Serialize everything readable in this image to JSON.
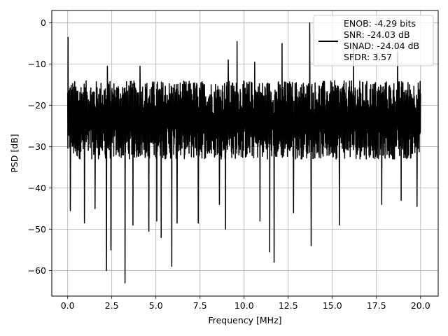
{
  "chart_data": {
    "type": "line",
    "title": "",
    "xlabel": "Frequency [MHz]",
    "ylabel": "PSD [dB]",
    "xlim": [
      -0.9,
      21.0
    ],
    "ylim": [
      -66.2,
      3.0
    ],
    "x_ticks": [
      0.0,
      2.5,
      5.0,
      7.5,
      10.0,
      12.5,
      15.0,
      17.5,
      20.0
    ],
    "x_tick_labels": [
      "0.0",
      "2.5",
      "5.0",
      "7.5",
      "10.0",
      "12.5",
      "15.0",
      "17.5",
      "20.0"
    ],
    "y_ticks": [
      0,
      -10,
      -20,
      -30,
      -40,
      -50,
      -60
    ],
    "y_tick_labels": [
      "0",
      "−10",
      "−20",
      "−30",
      "−40",
      "−50",
      "−60"
    ],
    "grid": true,
    "legend_position": "top-right",
    "series": [
      {
        "name": "",
        "color": "#000000",
        "noise_band": {
          "x_start": 0.0,
          "x_end": 20.0,
          "upper_db": -14.0,
          "lower_db": -33.0
        },
        "peaks": [
          {
            "x": 0.02,
            "y": -3.5
          },
          {
            "x": 2.25,
            "y": -10.5
          },
          {
            "x": 4.1,
            "y": -10.5
          },
          {
            "x": 9.1,
            "y": -9.0
          },
          {
            "x": 9.6,
            "y": -4.5
          },
          {
            "x": 10.6,
            "y": -9.5
          },
          {
            "x": 12.15,
            "y": -5.0
          },
          {
            "x": 13.72,
            "y": 0.0
          },
          {
            "x": 16.2,
            "y": -6.5
          },
          {
            "x": 18.7,
            "y": -7.0
          }
        ],
        "troughs": [
          {
            "x": 0.15,
            "y": -45.5
          },
          {
            "x": 0.95,
            "y": -48.5
          },
          {
            "x": 1.55,
            "y": -45.0
          },
          {
            "x": 2.2,
            "y": -60.0
          },
          {
            "x": 2.45,
            "y": -55.0
          },
          {
            "x": 3.25,
            "y": -63.0
          },
          {
            "x": 3.7,
            "y": -49.0
          },
          {
            "x": 4.6,
            "y": -50.5
          },
          {
            "x": 5.05,
            "y": -48.0
          },
          {
            "x": 5.3,
            "y": -52.0
          },
          {
            "x": 5.9,
            "y": -59.0
          },
          {
            "x": 6.2,
            "y": -48.5
          },
          {
            "x": 7.4,
            "y": -48.5
          },
          {
            "x": 8.6,
            "y": -44.0
          },
          {
            "x": 8.95,
            "y": -50.0
          },
          {
            "x": 10.9,
            "y": -48.0
          },
          {
            "x": 11.45,
            "y": -55.5
          },
          {
            "x": 11.7,
            "y": -58.0
          },
          {
            "x": 12.8,
            "y": -46.0
          },
          {
            "x": 13.8,
            "y": -54.0
          },
          {
            "x": 15.4,
            "y": -49.0
          },
          {
            "x": 17.8,
            "y": -44.0
          },
          {
            "x": 18.9,
            "y": -43.0
          },
          {
            "x": 19.8,
            "y": -44.5
          }
        ]
      }
    ],
    "legend": [
      "ENOB: -4.29 bits",
      "SNR: -24.03 dB",
      "SINAD: -24.04 dB",
      "SFDR: 3.57"
    ]
  }
}
